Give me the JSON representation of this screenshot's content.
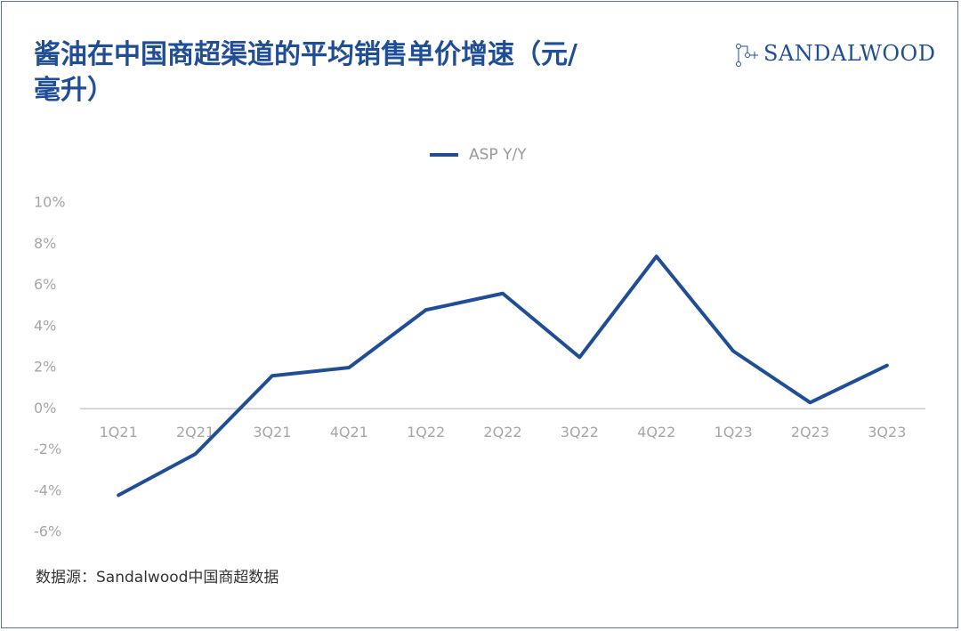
{
  "chart_data": {
    "type": "line",
    "title": "酱油在中国商超渠道的平均销售单价增速（元/毫升）",
    "brand": "SANDALWOOD",
    "source": "数据源：Sandalwood中国商超数据",
    "categories": [
      "1Q21",
      "2Q21",
      "3Q21",
      "4Q21",
      "1Q22",
      "2Q22",
      "3Q22",
      "4Q22",
      "1Q23",
      "2Q23",
      "3Q23"
    ],
    "series": [
      {
        "name": "ASP Y/Y",
        "color": "#1f4e96",
        "values": [
          -4.2,
          -2.2,
          1.6,
          2.0,
          4.8,
          5.6,
          2.5,
          7.4,
          2.8,
          0.3,
          2.1
        ]
      }
    ],
    "ylim": [
      -6,
      10
    ],
    "yticks": [
      {
        "value": -6,
        "label": "-6%"
      },
      {
        "value": -4,
        "label": "-4%"
      },
      {
        "value": -2,
        "label": "-2%"
      },
      {
        "value": 0,
        "label": "0%"
      },
      {
        "value": 2,
        "label": "2%"
      },
      {
        "value": 4,
        "label": "4%"
      },
      {
        "value": 6,
        "label": "6%"
      },
      {
        "value": 8,
        "label": "8%"
      },
      {
        "value": 10,
        "label": "10%"
      }
    ],
    "grid": false,
    "legend": "top"
  }
}
